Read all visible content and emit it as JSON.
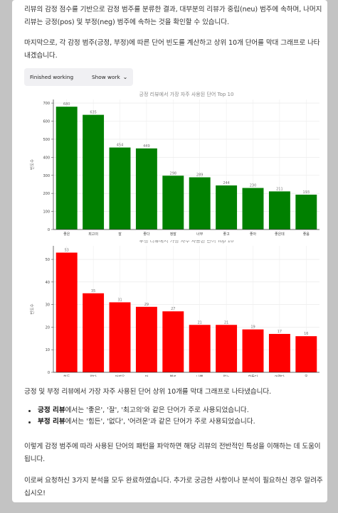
{
  "intro": {
    "para1": "리뷰의 감정 점수를 기반으로 감정 범주를 분류한 결과, 대부분의 리뷰가 중립(neu) 범주에 속하며, 나머지 리뷰는 긍정(pos) 및 부정(neg) 범주에 속하는 것을 확인할 수 있습니다.",
    "para2": "마지막으로, 각 감정 범주(긍정, 부정)에 따른 단어 빈도를 계산하고 상위 10개 단어를 막대 그래프로 나타내겠습니다."
  },
  "tool_bar": {
    "status": "Finished working",
    "show_work": "Show work"
  },
  "chart_data": [
    {
      "type": "bar",
      "title": "긍정 리뷰에서 가장 자주 사용된 단어 Top 10",
      "ylabel": "빈도수",
      "xlabel": "",
      "ylim": [
        0,
        720
      ],
      "yticks": [
        0,
        100,
        200,
        300,
        400,
        500,
        600,
        700
      ],
      "categories": [
        "좋은",
        "최고의",
        "잘",
        "좋다",
        "정말",
        "너무",
        "좋고",
        "좋아",
        "좋은데",
        "좋음"
      ],
      "values": [
        680,
        635,
        454,
        449,
        298,
        289,
        244,
        230,
        211,
        193
      ],
      "color": "#008000",
      "grid": true
    },
    {
      "type": "bar",
      "title": "부정 리뷰에서 가장 자주 사용된 단어 Top 10",
      "ylabel": "빈도수",
      "xlabel": "",
      "ylim": [
        0,
        56
      ],
      "yticks": [
        0,
        10,
        20,
        30,
        40,
        50
      ],
      "categories": [
        "힘든",
        "없다",
        "어려운",
        "안",
        "별로",
        "나쁜",
        "없는",
        "힘들다",
        "어렵다",
        "못"
      ],
      "values": [
        53,
        35,
        31,
        29,
        27,
        21,
        21,
        19,
        17,
        16
      ],
      "color": "#ff0000",
      "grid": true
    }
  ],
  "summary": "긍정 및 부정 리뷰에서 가장 자주 사용된 단어 상위 10개를 막대 그래프로 나타냈습니다.",
  "bullets": [
    {
      "label": "긍정 리뷰",
      "text": "에서는 '좋은', '잘', '최고의'와 같은 단어가 주로 사용되었습니다."
    },
    {
      "label": "부정 리뷰",
      "text": "에서는 '힘든', '없다', '어려운'과 같은 단어가 주로 사용되었습니다."
    }
  ],
  "para3": "이렇게 감정 범주에 따라 사용된 단어의 패턴을 파악하면 해당 리뷰의 전반적인 특성을 이해하는 데 도움이 됩니다.",
  "para4": "이로써 요청하신 3가지 분석을 모두 완료하였습니다. 추가로 궁금한 사항이나 분석이 필요하신 경우 알려주십시오!"
}
